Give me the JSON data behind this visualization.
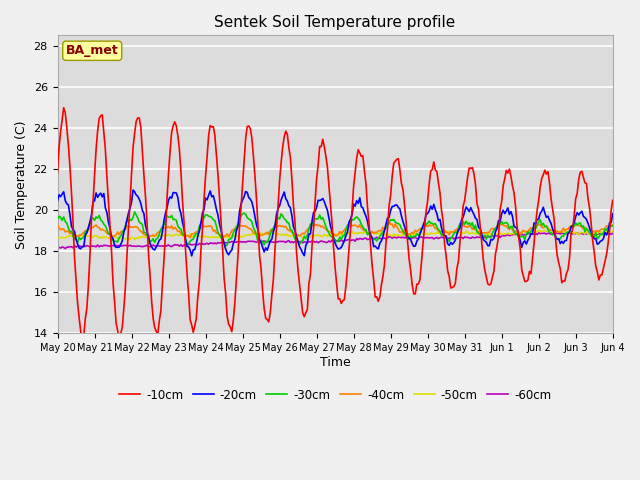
{
  "title": "Sentek Soil Temperature profile",
  "xlabel": "Time",
  "ylabel": "Soil Temperature (C)",
  "ylim": [
    14,
    28.5
  ],
  "annotation": "BA_met",
  "annotation_color": "#8B0000",
  "annotation_bg": "#FFFFA0",
  "fig_bg": "#F0F0F0",
  "plot_bg": "#DCDCDC",
  "grid_color": "#FFFFFF",
  "tick_labels": [
    "May 20",
    "May 21",
    "May 22",
    "May 23",
    "May 24",
    "May 25",
    "May 26",
    "May 27",
    "May 28",
    "May 29",
    "May 30",
    "May 31",
    "Jun 1",
    "Jun 2",
    "Jun 3",
    "Jun 4"
  ],
  "legend_entries": [
    "-10cm",
    "-20cm",
    "-30cm",
    "-40cm",
    "-50cm",
    "-60cm"
  ],
  "line_colors": [
    "#FF0000",
    "#0000FF",
    "#00CC00",
    "#FF8000",
    "#DDDD00",
    "#BB00BB"
  ],
  "line_widths": [
    1.2,
    1.2,
    1.2,
    1.2,
    1.2,
    1.2
  ],
  "yticks": [
    14,
    16,
    18,
    20,
    22,
    24,
    26,
    28
  ]
}
